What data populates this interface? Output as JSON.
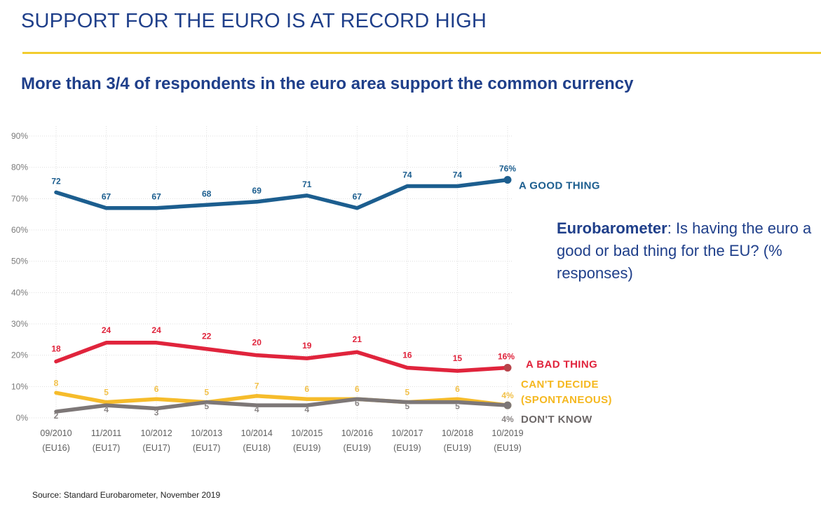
{
  "header": {
    "title": "SUPPORT FOR THE EURO IS AT RECORD HIGH",
    "subtitle": "More than 3/4 of respondents in the euro area support the common currency"
  },
  "note": {
    "bold": "Eurobarometer",
    "text": ": Is having the euro a good or bad thing for the EU?  (% responses)"
  },
  "footer": {
    "source": "Source: Standard Eurobarometer, November 2019"
  },
  "colors": {
    "title": "#1f3f8a",
    "rule": "#f2cc2e",
    "good": "#1c5e8f",
    "bad": "#e0243c",
    "cant_decide": "#f5b820",
    "dont_know": "#7d7777"
  },
  "chart_data": {
    "type": "line",
    "x": [
      [
        "09/2010",
        "(EU16)"
      ],
      [
        "11/2011",
        "(EU17)"
      ],
      [
        "10/2012",
        "(EU17)"
      ],
      [
        "10/2013",
        "(EU17)"
      ],
      [
        "10/2014",
        "(EU18)"
      ],
      [
        "10/2015",
        "(EU19)"
      ],
      [
        "10/2016",
        "(EU19)"
      ],
      [
        "10/2017",
        "(EU19)"
      ],
      [
        "10/2018",
        "(EU19)"
      ],
      [
        "10/2019",
        "(EU19)"
      ]
    ],
    "ylim": [
      0,
      90
    ],
    "yticks": [
      "0%",
      "10%",
      "20%",
      "30%",
      "40%",
      "50%",
      "60%",
      "70%",
      "80%",
      "90%"
    ],
    "grid": true,
    "series": [
      {
        "key": "good",
        "name": "A GOOD THING",
        "values": [
          72,
          67,
          67,
          68,
          69,
          71,
          67,
          74,
          74,
          76
        ],
        "labels": [
          "72",
          "67",
          "67",
          "68",
          "69",
          "71",
          "67",
          "74",
          "74",
          "76%"
        ]
      },
      {
        "key": "bad",
        "name": "A BAD THING",
        "values": [
          18,
          24,
          24,
          22,
          20,
          19,
          21,
          16,
          15,
          16
        ],
        "labels": [
          "18",
          "24",
          "24",
          "22",
          "20",
          "19",
          "21",
          "16",
          "15",
          "16%"
        ]
      },
      {
        "key": "cant_decide",
        "name": "CAN'T DECIDE (SPONTANEOUS)",
        "name_lines": [
          "CAN'T DECIDE",
          "(SPONTANEOUS)"
        ],
        "values": [
          8,
          5,
          6,
          5,
          7,
          6,
          6,
          5,
          6,
          4
        ],
        "labels": [
          "8",
          "5",
          "6",
          "5",
          "7",
          "6",
          "6",
          "5",
          "6",
          "4%"
        ]
      },
      {
        "key": "dont_know",
        "name": "DON'T KNOW",
        "values": [
          2,
          4,
          3,
          5,
          4,
          4,
          6,
          5,
          5,
          4
        ],
        "labels": [
          "2",
          "4",
          "3",
          "5",
          "4",
          "4",
          "6",
          "5",
          "5",
          "4%"
        ]
      }
    ]
  }
}
